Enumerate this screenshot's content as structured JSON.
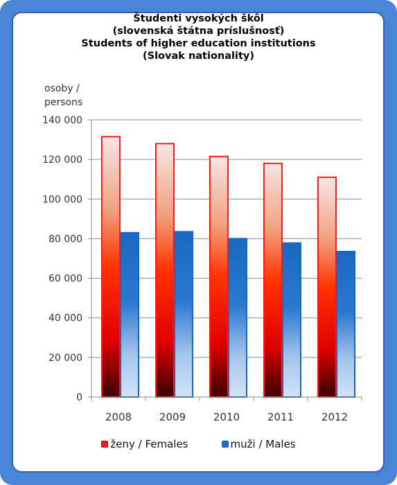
{
  "chart_data": {
    "type": "bar",
    "title_lines": [
      "Študenti vysokých škôl",
      "(slovenská štátna príslušnosť)",
      "Students of higher education institutions",
      "(Slovak nationality)"
    ],
    "ylabel_lines": [
      "osoby /",
      "persons"
    ],
    "categories": [
      "2008",
      "2009",
      "2010",
      "2011",
      "2012"
    ],
    "series": [
      {
        "name": "ženy / Females",
        "values": [
          131500,
          128000,
          121500,
          118000,
          111000
        ],
        "color": "#ee1d1d"
      },
      {
        "name": "muži / Males",
        "values": [
          83000,
          83500,
          80000,
          77800,
          73500
        ],
        "color": "#1f6fc8"
      }
    ],
    "ylim": [
      0,
      140000
    ],
    "yticks": [
      0,
      20000,
      40000,
      60000,
      80000,
      100000,
      120000,
      140000
    ],
    "ytick_labels": [
      "0",
      "20 000",
      "40 000",
      "60 000",
      "80 000",
      "100 000",
      "120 000",
      "140 000"
    ],
    "grid": true,
    "legend_position": "bottom"
  }
}
